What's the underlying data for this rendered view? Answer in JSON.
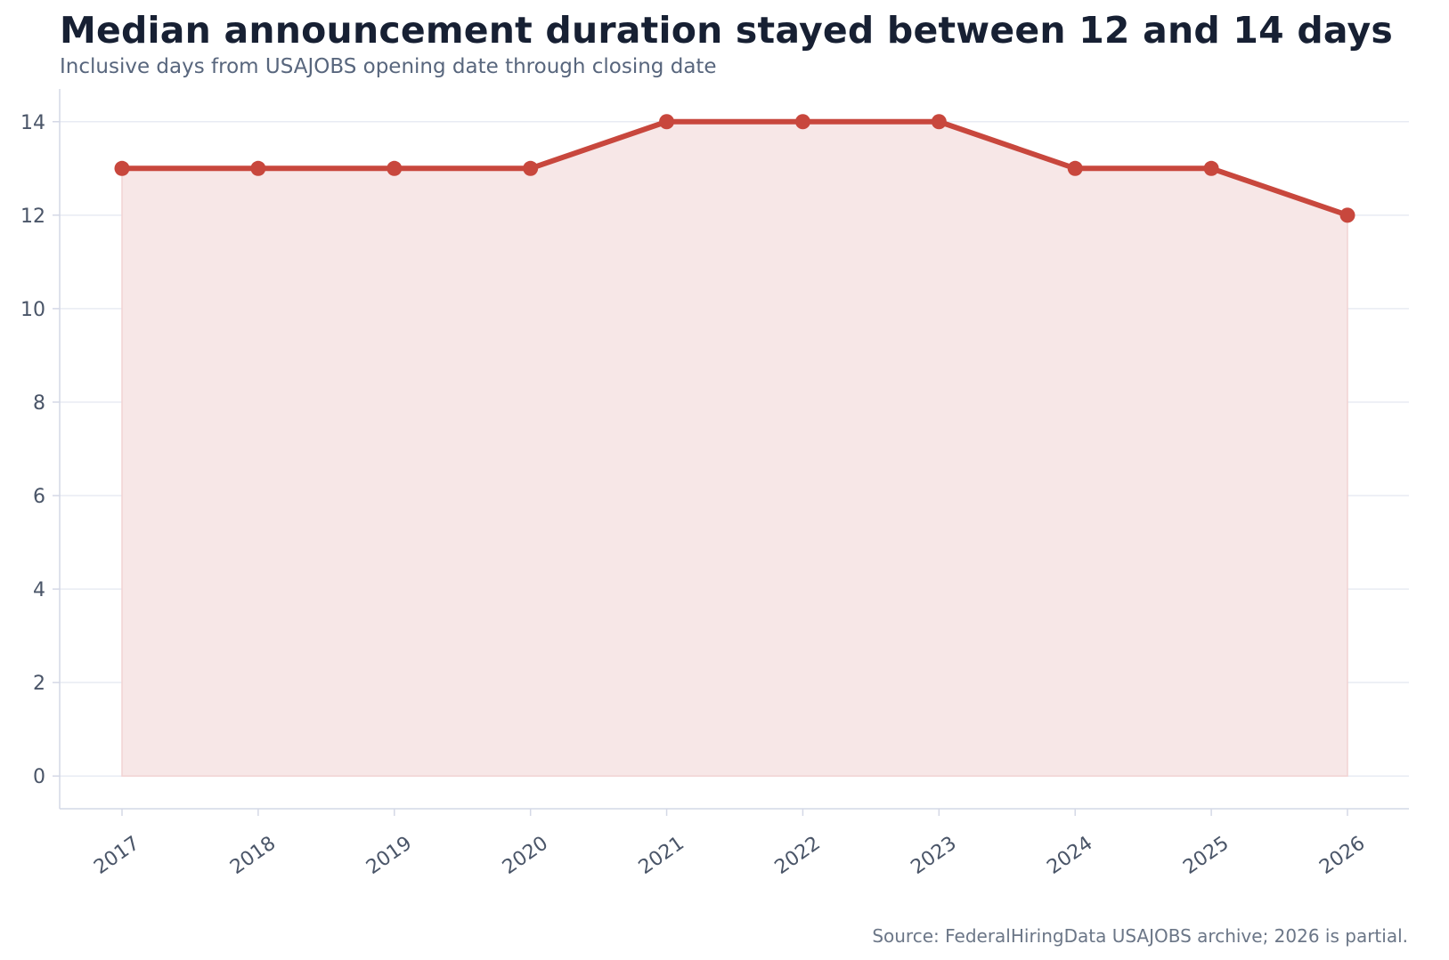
{
  "chart_data": {
    "type": "line",
    "title": "Median announcement duration stayed between 12 and 14 days",
    "subtitle": "Inclusive days from USAJOBS opening date through closing date",
    "source": "Source: FederalHiringData USAJOBS archive; 2026 is partial.",
    "xlabel": "",
    "ylabel": "",
    "categories": [
      "2017",
      "2018",
      "2019",
      "2020",
      "2021",
      "2022",
      "2023",
      "2024",
      "2025",
      "2026"
    ],
    "series": [
      {
        "values": [
          13,
          13,
          13,
          13,
          14,
          14,
          14,
          13,
          13,
          12
        ],
        "color": "#c8473d",
        "fill": "#f7e7e7",
        "markers": true,
        "area": true
      }
    ],
    "ylim": [
      -0.7,
      14.7
    ],
    "yticks": [
      0,
      2,
      4,
      6,
      8,
      10,
      12,
      14
    ],
    "grid": "horizontal",
    "legend": "none",
    "colors": {
      "title": "#172033",
      "subtitle": "#58667d",
      "tick": "#4a5568",
      "grid": "#e8ebf3",
      "axis": "#d4d8e6"
    }
  }
}
